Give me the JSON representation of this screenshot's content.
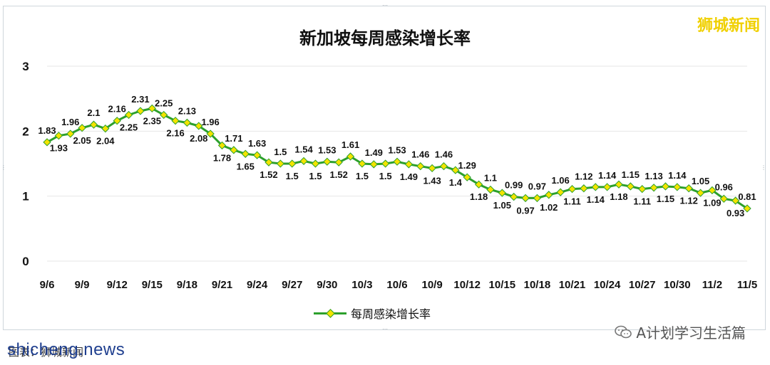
{
  "brand": "狮城新闻",
  "watermark": "shicheng.news",
  "source_note": "图表：狮城新闻",
  "wechat_label": "A计划学习生活篇",
  "colors": {
    "line": "#2ca02c",
    "marker": "#f3e300",
    "grid": "#e6e6e6",
    "brand": "#f0d000"
  },
  "chart_data": {
    "type": "line",
    "title": "新加坡每周感染增长率",
    "xlabel": "",
    "ylabel": "",
    "ylim": [
      0,
      3
    ],
    "yticks": [
      "0",
      "1",
      "2",
      "3"
    ],
    "grid": "horizontal",
    "legend_position": "bottom",
    "x_tick_labels": [
      "9/6",
      "9/9",
      "9/12",
      "9/15",
      "9/18",
      "9/21",
      "9/24",
      "9/27",
      "9/30",
      "10/3",
      "10/6",
      "10/9",
      "10/12",
      "10/15",
      "10/18",
      "10/21",
      "10/24",
      "10/27",
      "10/30",
      "11/2",
      "11/5"
    ],
    "x": [
      "9/6",
      "9/7",
      "9/8",
      "9/9",
      "9/10",
      "9/11",
      "9/12",
      "9/13",
      "9/14",
      "9/15",
      "9/16",
      "9/17",
      "9/18",
      "9/19",
      "9/20",
      "9/21",
      "9/22",
      "9/23",
      "9/24",
      "9/25",
      "9/26",
      "9/27",
      "9/28",
      "9/29",
      "9/30",
      "10/1",
      "10/2",
      "10/3",
      "10/4",
      "10/5",
      "10/6",
      "10/7",
      "10/8",
      "10/9",
      "10/10",
      "10/11",
      "10/12",
      "10/13",
      "10/14",
      "10/15",
      "10/16",
      "10/17",
      "10/18",
      "10/19",
      "10/20",
      "10/21",
      "10/22",
      "10/23",
      "10/24",
      "10/25",
      "10/26",
      "10/27",
      "10/28",
      "10/29",
      "10/30",
      "10/31",
      "11/1",
      "11/2",
      "11/3",
      "11/4",
      "11/5"
    ],
    "series": [
      {
        "name": "每周感染增长率",
        "values": [
          1.83,
          1.93,
          1.96,
          2.05,
          2.1,
          2.04,
          2.16,
          2.25,
          2.31,
          2.35,
          2.25,
          2.16,
          2.13,
          2.08,
          1.96,
          1.78,
          1.71,
          1.65,
          1.63,
          1.52,
          1.5,
          1.5,
          1.54,
          1.5,
          1.53,
          1.52,
          1.61,
          1.5,
          1.49,
          1.5,
          1.53,
          1.49,
          1.46,
          1.43,
          1.46,
          1.4,
          1.29,
          1.18,
          1.1,
          1.05,
          0.99,
          0.97,
          0.97,
          1.02,
          1.06,
          1.11,
          1.12,
          1.14,
          1.14,
          1.18,
          1.15,
          1.11,
          1.13,
          1.15,
          1.14,
          1.12,
          1.05,
          1.09,
          0.96,
          0.93,
          0.81
        ],
        "labels": [
          "1.83",
          "1.93",
          "1.96",
          "2.05",
          "2.1",
          "2.04",
          "2.16",
          "2.25",
          "2.31",
          "2.35",
          "2.25",
          "2.16",
          "2.13",
          "2.08",
          "1.96",
          "1.78",
          "1.71",
          "1.65",
          "1.63",
          "1.52",
          "1.5",
          "1.5",
          "1.54",
          "1.5",
          "1.53",
          "1.52",
          "1.61",
          "1.5",
          "1.49",
          "1.5",
          "1.53",
          "1.49",
          "1.46",
          "1.43",
          "1.46",
          "1.4",
          "1.29",
          "1.18",
          "1.1",
          "1.05",
          "0.99",
          "0.97",
          "0.97",
          "1.02",
          "1.06",
          "1.11",
          "1.12",
          "1.14",
          "1.14",
          "1.18",
          "1.15",
          "1.11",
          "1.13",
          "1.15",
          "1.14",
          "1.12",
          "1.05",
          "1.09",
          "0.96",
          "0.93",
          "0.81"
        ],
        "label_position": [
          "above",
          "below",
          "above",
          "below",
          "above",
          "below",
          "above",
          "below",
          "above",
          "below",
          "above",
          "below",
          "above",
          "below",
          "above",
          "below",
          "above",
          "below",
          "above",
          "below",
          "above",
          "below",
          "above",
          "below",
          "above",
          "below",
          "above",
          "below",
          "above",
          "below",
          "above",
          "below",
          "above",
          "below",
          "above",
          "below",
          "above",
          "below",
          "above",
          "below",
          "above",
          "below",
          "above",
          "below",
          "above",
          "below",
          "above",
          "below",
          "above",
          "below",
          "above",
          "below",
          "above",
          "below",
          "above",
          "below",
          "above",
          "below",
          "above",
          "below",
          "above"
        ],
        "label_visible": [
          true,
          true,
          true,
          true,
          true,
          true,
          true,
          true,
          true,
          true,
          true,
          true,
          true,
          true,
          true,
          true,
          true,
          true,
          true,
          true,
          true,
          true,
          true,
          true,
          true,
          true,
          true,
          true,
          true,
          true,
          true,
          true,
          true,
          true,
          true,
          true,
          true,
          true,
          true,
          true,
          true,
          true,
          true,
          true,
          true,
          true,
          true,
          true,
          true,
          true,
          true,
          true,
          true,
          true,
          true,
          true,
          true,
          true,
          true,
          true,
          true
        ]
      }
    ]
  }
}
